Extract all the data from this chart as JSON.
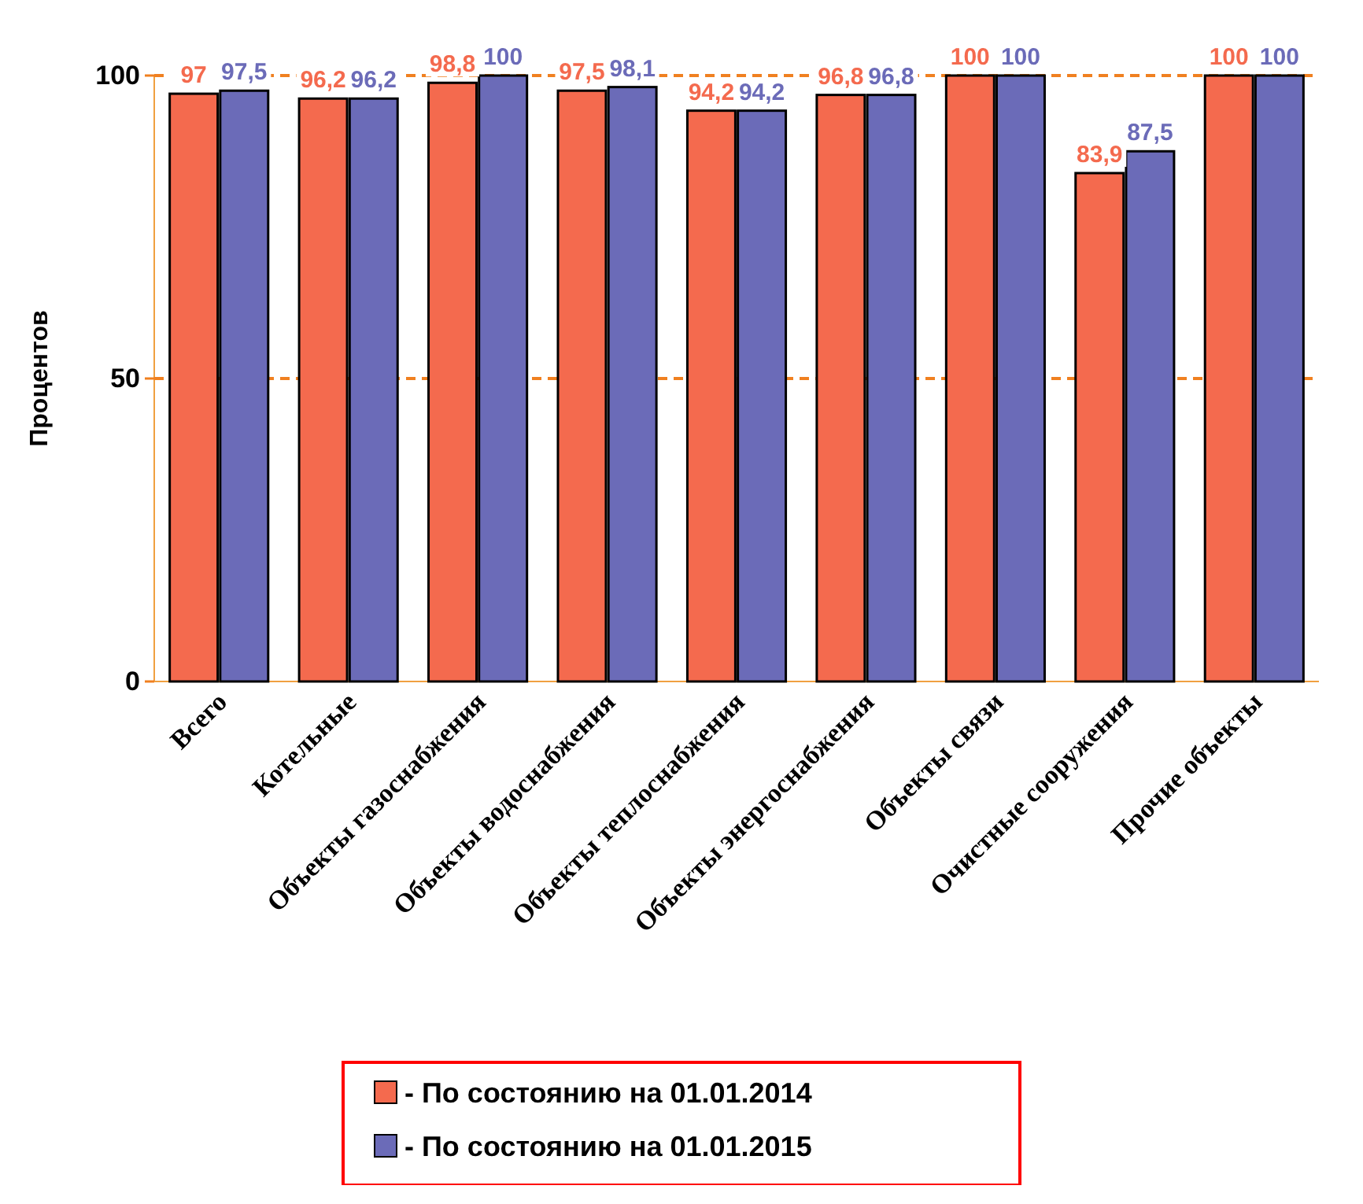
{
  "chart_data": {
    "type": "bar",
    "ylabel": "Процентов",
    "categories": [
      "Всего",
      "Котельные",
      "Объекты газоснабжения",
      "Объекты водоснабжения",
      "Объекты теплоснабжения",
      "Объекты энергоснабжения",
      "Объекты связи",
      "Очистные сооружения",
      "Прочие объекты"
    ],
    "series": [
      {
        "name": "- По состоянию на 01.01.2014",
        "color": "#f46a4e",
        "values": [
          97,
          96.2,
          98.8,
          97.5,
          94.2,
          96.8,
          100,
          83.9,
          100
        ],
        "value_labels": [
          "97",
          "96,2",
          "98,8",
          "97,5",
          "94,2",
          "96,8",
          "100",
          "83,9",
          "100"
        ]
      },
      {
        "name": "- По состоянию на 01.01.2015",
        "color": "#6b6bb8",
        "values": [
          97.5,
          96.2,
          100,
          98.1,
          94.2,
          96.8,
          100,
          87.5,
          100
        ],
        "value_labels": [
          "97,5",
          "96,2",
          "100",
          "98,1",
          "94,2",
          "96,8",
          "100",
          "87,5",
          "100"
        ]
      }
    ],
    "ylim": [
      0,
      100
    ],
    "yticks": [
      0,
      50,
      100
    ],
    "ref_lines": [
      {
        "axis": "y",
        "value": 50,
        "color": "#f08020",
        "line_style": "dashed"
      },
      {
        "axis": "y",
        "value": 100,
        "color": "#f08020",
        "line_style": "dashed"
      }
    ],
    "legend": "bottom"
  }
}
